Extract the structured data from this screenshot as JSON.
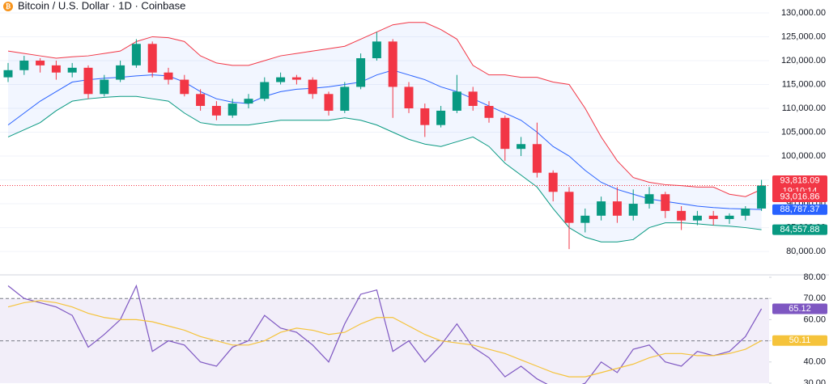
{
  "header": {
    "title": "Bitcoin / U.S. Dollar · 1D · Coinbase"
  },
  "chart_data": [
    {
      "type": "candlestick",
      "up_color": "#089981",
      "down_color": "#f23645",
      "ylim": [
        75100,
        132700
      ],
      "yticks": [
        {
          "value": 80000,
          "label": "80,000.00"
        },
        {
          "value": 85000,
          "label": "85,000.00"
        },
        {
          "value": 90000,
          "label": "90,000.00"
        },
        {
          "value": 95000,
          "label": "95,000.00"
        },
        {
          "value": 100000,
          "label": "100,000.00"
        },
        {
          "value": 105000,
          "label": "105,000.00"
        },
        {
          "value": 110000,
          "label": "110,000.00"
        },
        {
          "value": 115000,
          "label": "115,000.00"
        },
        {
          "value": 120000,
          "label": "120,000.00"
        },
        {
          "value": 125000,
          "label": "125,000.00"
        },
        {
          "value": 130000,
          "label": "130,000.00"
        }
      ],
      "grid": true,
      "ohlc": [
        [
          116500,
          119500,
          115500,
          118000
        ],
        [
          118000,
          121000,
          117000,
          120000
        ],
        [
          120000,
          120500,
          117500,
          119000
        ],
        [
          119000,
          120000,
          116000,
          117500
        ],
        [
          117500,
          119500,
          116500,
          118500
        ],
        [
          118500,
          119000,
          112000,
          113000
        ],
        [
          113000,
          117000,
          112500,
          116000
        ],
        [
          116000,
          120000,
          115500,
          119000
        ],
        [
          119000,
          124500,
          118500,
          123500
        ],
        [
          123500,
          124000,
          116500,
          117500
        ],
        [
          117500,
          118500,
          115000,
          116000
        ],
        [
          116000,
          117000,
          112500,
          113000
        ],
        [
          113000,
          114000,
          109500,
          110500
        ],
        [
          110500,
          111500,
          107500,
          108500
        ],
        [
          108500,
          112000,
          108000,
          111000
        ],
        [
          111000,
          113000,
          110000,
          112000
        ],
        [
          112000,
          116500,
          111500,
          115500
        ],
        [
          115500,
          117500,
          115000,
          116500
        ],
        [
          116500,
          117000,
          115000,
          116000
        ],
        [
          116000,
          116500,
          112000,
          113000
        ],
        [
          113000,
          113500,
          108500,
          109500
        ],
        [
          109500,
          115500,
          109000,
          114500
        ],
        [
          114500,
          121500,
          114000,
          120500
        ],
        [
          120500,
          126000,
          120000,
          124000
        ],
        [
          124000,
          124500,
          108000,
          114500
        ],
        [
          114500,
          115500,
          109000,
          110000
        ],
        [
          110000,
          111000,
          104000,
          106500
        ],
        [
          106500,
          110500,
          106000,
          109500
        ],
        [
          109500,
          117000,
          109000,
          113500
        ],
        [
          113500,
          114500,
          109500,
          110500
        ],
        [
          110500,
          111500,
          107000,
          108000
        ],
        [
          108000,
          108500,
          99000,
          101500
        ],
        [
          101500,
          104000,
          100000,
          102500
        ],
        [
          102500,
          107000,
          95500,
          96500
        ],
        [
          96500,
          97000,
          90500,
          92500
        ],
        [
          92500,
          93500,
          80500,
          86000
        ],
        [
          86000,
          89000,
          84000,
          87500
        ],
        [
          87500,
          91500,
          86500,
          90500
        ],
        [
          90500,
          93500,
          86000,
          87500
        ],
        [
          87500,
          93000,
          86500,
          90000
        ],
        [
          90000,
          93500,
          89000,
          92000
        ],
        [
          92000,
          92500,
          87000,
          88500
        ],
        [
          88500,
          89500,
          84500,
          86500
        ],
        [
          86500,
          88500,
          85500,
          87500
        ],
        [
          87500,
          88500,
          85500,
          86800
        ],
        [
          86800,
          88000,
          85800,
          87500
        ],
        [
          87500,
          89500,
          86500,
          89000
        ],
        [
          89000,
          95000,
          88500,
          93818.09
        ]
      ],
      "last_label": "93,818.09",
      "last_color": "#f23645",
      "countdown": "19:10:14",
      "band_fill": "#2962ff",
      "overlays": [
        {
          "color": "#f23645",
          "last_label": "93,016.86",
          "values": [
            122000,
            121500,
            121000,
            120500,
            120800,
            121000,
            121500,
            122000,
            124000,
            125000,
            124800,
            124000,
            121000,
            119500,
            119000,
            119000,
            120000,
            121000,
            121500,
            122000,
            122500,
            123000,
            124500,
            126000,
            127500,
            128000,
            128000,
            126500,
            124500,
            119000,
            117000,
            117000,
            116500,
            116500,
            115500,
            115000,
            110000,
            104000,
            99000,
            95500,
            94500,
            94000,
            93800,
            93500,
            93500,
            92000,
            91500,
            93016.86
          ]
        },
        {
          "color": "#2962ff",
          "last_label": "88,787.37",
          "values": [
            106500,
            109000,
            111500,
            113500,
            115500,
            116000,
            116300,
            116500,
            116800,
            117000,
            116800,
            115500,
            113500,
            112000,
            111300,
            111000,
            112500,
            113500,
            114000,
            114200,
            114500,
            115000,
            115500,
            117000,
            118000,
            117000,
            116000,
            114500,
            113500,
            112000,
            110500,
            109000,
            107500,
            105000,
            102000,
            100000,
            97000,
            94500,
            93000,
            92000,
            91000,
            90500,
            90000,
            89500,
            89200,
            89000,
            88900,
            88787.37
          ]
        },
        {
          "color": "#089981",
          "last_label": "84,557.88",
          "values": [
            104000,
            105500,
            107000,
            109500,
            111500,
            112000,
            112300,
            112500,
            112500,
            112000,
            111500,
            109000,
            107000,
            106500,
            106500,
            106500,
            107000,
            107500,
            107500,
            107500,
            107500,
            108000,
            107500,
            106500,
            105000,
            103500,
            102500,
            102000,
            103000,
            104000,
            102000,
            98500,
            96000,
            93500,
            89000,
            85000,
            83000,
            82000,
            82000,
            82500,
            85000,
            86000,
            86000,
            85800,
            85500,
            85300,
            85000,
            84557.88
          ]
        }
      ]
    },
    {
      "type": "line",
      "ylim": [
        29.6,
        81.15
      ],
      "yticks": [
        {
          "value": 30,
          "label": "30.00"
        },
        {
          "value": 40,
          "label": "40.00"
        },
        {
          "value": 50,
          "label": "50.00"
        },
        {
          "value": 60,
          "label": "60.00"
        },
        {
          "value": 70,
          "label": "70.00"
        },
        {
          "value": 80,
          "label": "80.00"
        }
      ],
      "band": [
        30,
        70
      ],
      "band_color": "#7e57c2",
      "dashed_levels": [
        70,
        50
      ],
      "series": [
        {
          "color": "#7e57c2",
          "last_label": "65.12",
          "values": [
            76,
            70,
            68,
            66,
            62,
            47,
            53,
            60,
            76,
            45,
            50,
            48,
            40,
            38,
            47,
            50,
            62,
            56,
            54,
            48,
            40,
            58,
            72,
            74,
            45,
            50,
            40,
            48,
            58,
            47,
            42,
            33,
            38,
            32,
            28,
            27,
            30,
            40,
            35,
            46,
            48,
            40,
            38,
            45,
            43,
            45,
            52,
            65.12
          ]
        },
        {
          "color": "#f5c33b",
          "last_label": "50.11",
          "values": [
            66,
            68,
            69,
            68,
            66,
            63,
            61,
            60,
            60,
            59,
            57,
            55,
            52,
            50,
            48,
            48,
            50,
            54,
            56,
            55,
            53,
            54,
            58,
            61,
            61,
            57,
            53,
            50,
            49,
            48,
            46,
            44,
            41,
            38,
            35,
            33,
            33,
            35,
            37,
            39,
            42,
            44,
            44,
            43,
            43,
            44,
            46,
            50.11
          ]
        }
      ]
    }
  ]
}
